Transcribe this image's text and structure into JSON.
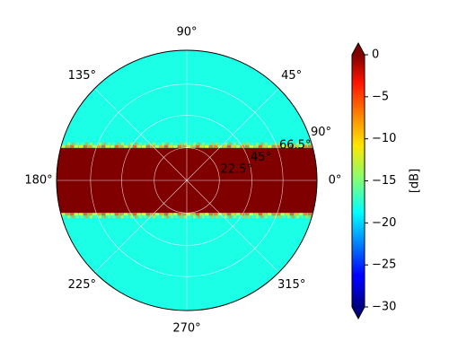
{
  "chart_data": {
    "type": "heatmap",
    "projection": "polar",
    "title": "",
    "azimuth_ticks": [
      {
        "deg": 0,
        "label": "0°"
      },
      {
        "deg": 45,
        "label": "45°"
      },
      {
        "deg": 90,
        "label": "90°"
      },
      {
        "deg": 135,
        "label": "135°"
      },
      {
        "deg": 180,
        "label": "180°"
      },
      {
        "deg": 225,
        "label": "225°"
      },
      {
        "deg": 270,
        "label": "270°"
      },
      {
        "deg": 315,
        "label": "315°"
      }
    ],
    "radial_ticks": [
      {
        "value": 22.5,
        "label": "22.5°"
      },
      {
        "value": 45,
        "label": "45°"
      },
      {
        "value": 66.5,
        "label": "66.5°"
      },
      {
        "value": 90,
        "label": "90°"
      }
    ],
    "radial_range": [
      0,
      90
    ],
    "grid": true,
    "field": {
      "background_db": -18,
      "band_db": 0,
      "band_edge_db": -12,
      "band_half_height": 22.5,
      "band_axis": "horizontal",
      "units": "dB"
    },
    "colorbar": {
      "label": "[dB]",
      "colormap": "jet",
      "range": [
        -30,
        0
      ],
      "ticks": [
        {
          "value": 0,
          "label": "0"
        },
        {
          "value": -5,
          "label": "−5"
        },
        {
          "value": -10,
          "label": "−10"
        },
        {
          "value": -15,
          "label": "−15"
        },
        {
          "value": -20,
          "label": "−20"
        },
        {
          "value": -25,
          "label": "−25"
        },
        {
          "value": -30,
          "label": "−30"
        }
      ],
      "extend": "both"
    }
  }
}
